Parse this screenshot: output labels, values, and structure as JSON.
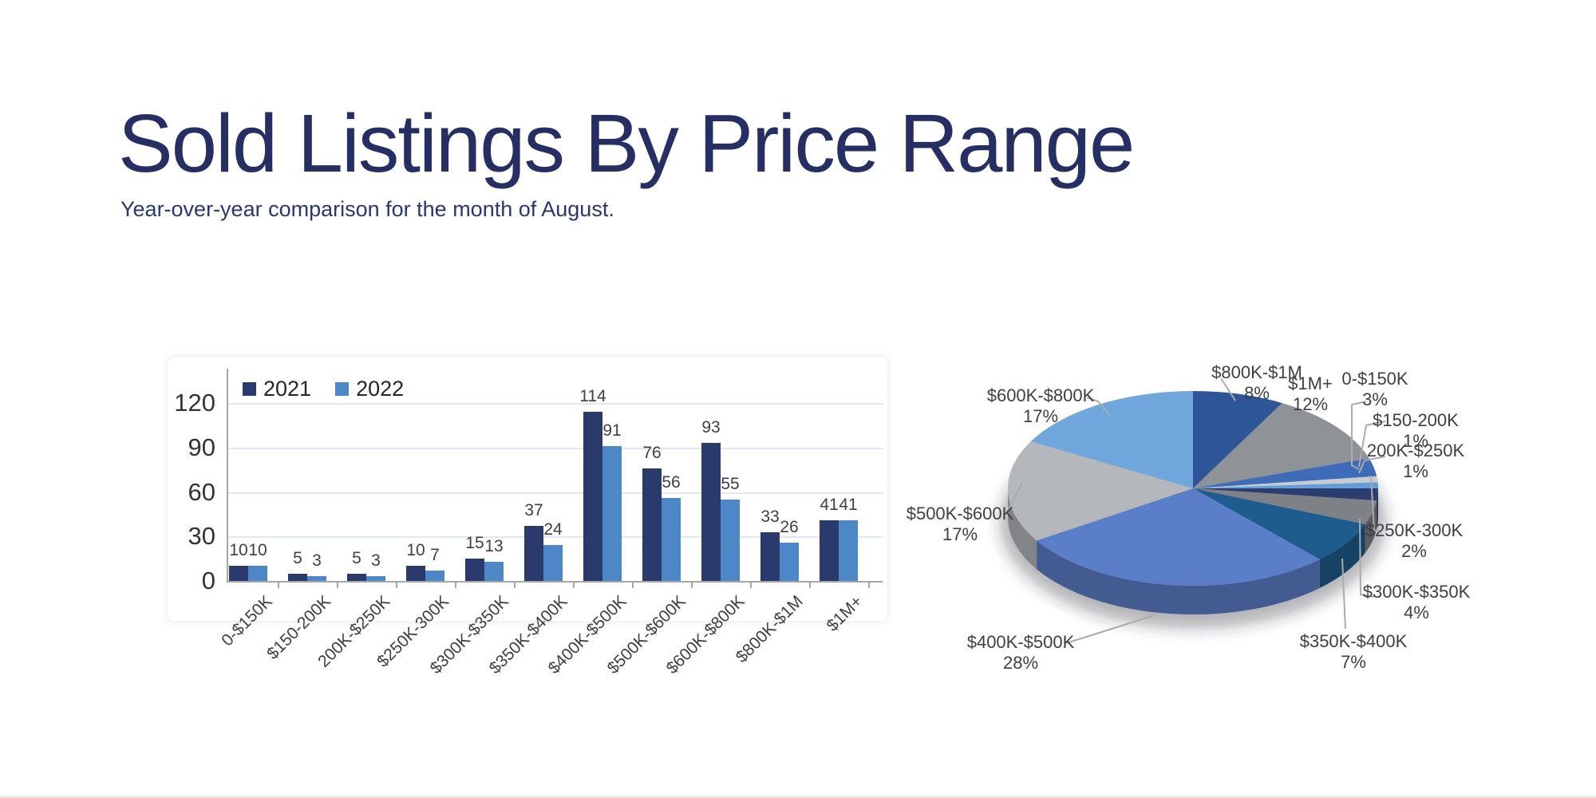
{
  "page": {
    "title": "Sold Listings By Price Range",
    "subtitle": "Year-over-year comparison for the month of August."
  },
  "colors": {
    "title_text": "#262f63",
    "series_2021": "#2a3a6d",
    "series_2022": "#4d87c7",
    "gridline": "#dfe8f2",
    "axis": "#a6a6a6",
    "value_label": "#3f3f3f",
    "leader_line": "#ababab"
  },
  "chart_data": [
    {
      "type": "bar",
      "title": "",
      "xlabel": "",
      "ylabel": "",
      "ylim": [
        0,
        120
      ],
      "yticks": [
        0,
        30,
        60,
        90,
        120
      ],
      "grid": true,
      "legend_position": "top-left-inside",
      "data_labels": true,
      "categories": [
        "0-$150K",
        "$150-200K",
        "200K-$250K",
        "$250K-300K",
        "$300K-$350K",
        "$350K-$400K",
        "$400K-$500K",
        "$500K-$600K",
        "$600K-$800K",
        "$800K-$1M",
        "$1M+"
      ],
      "series": [
        {
          "name": "2021",
          "color": "#2a3a6d",
          "values": [
            10,
            5,
            5,
            10,
            15,
            37,
            114,
            76,
            93,
            33,
            41
          ]
        },
        {
          "name": "2022",
          "color": "#4d87c7",
          "values": [
            10,
            3,
            3,
            7,
            13,
            24,
            91,
            56,
            55,
            26,
            41
          ]
        }
      ]
    },
    {
      "type": "pie",
      "style": "3d",
      "start_at_top": true,
      "direction": "clockwise",
      "slices": [
        {
          "label": "$800K-$1M",
          "pct": 8,
          "color": "#2e5597"
        },
        {
          "label": "$1M+",
          "pct": 12,
          "color": "#8f9297"
        },
        {
          "label": "0-$150K",
          "pct": 3,
          "color": "#3e6cb8"
        },
        {
          "label": "$150-200K",
          "pct": 1,
          "color": "#c8ccd2"
        },
        {
          "label": "200K-$250K",
          "pct": 1,
          "color": "#649dd6"
        },
        {
          "label": "$250K-300K",
          "pct": 2,
          "color": "#2c3e70"
        },
        {
          "label": "$300K-$350K",
          "pct": 4,
          "color": "#7e8186"
        },
        {
          "label": "$350K-$400K",
          "pct": 7,
          "color": "#1f5c8e"
        },
        {
          "label": "$400K-$500K",
          "pct": 28,
          "color": "#5b7ec8"
        },
        {
          "label": "$500K-$600K",
          "pct": 17,
          "color": "#b4b7bc"
        },
        {
          "label": "$600K-$800K",
          "pct": 17,
          "color": "#6fa7dc"
        }
      ]
    }
  ]
}
